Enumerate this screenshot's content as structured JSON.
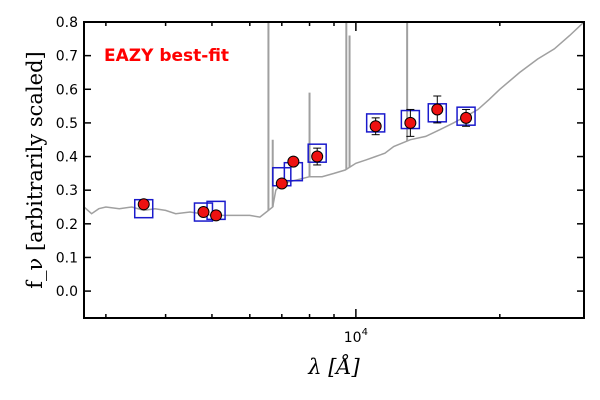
{
  "chart_data": {
    "type": "scatter",
    "title": "",
    "xlabel": "λ [Å]",
    "ylabel": "f_ν [arbitrarily scaled]",
    "xscale": "log",
    "xlim": [
      2700,
      30000
    ],
    "ylim": [
      -0.08,
      0.8
    ],
    "grid": false,
    "yticks": [
      0.0,
      0.1,
      0.2,
      0.3,
      0.4,
      0.5,
      0.6,
      0.7,
      0.8
    ],
    "ytick_labels": [
      "0.0",
      "0.1",
      "0.2",
      "0.3",
      "0.4",
      "0.5",
      "0.6",
      "0.7",
      "0.8"
    ],
    "xtick_label": {
      "base": "10",
      "exp": "4",
      "value": 10000
    },
    "annotation": {
      "text": "EAZY best-fit",
      "color": "#ff0000"
    },
    "colors": {
      "template": "#a0a0a0",
      "model_box": "#1a1acc",
      "point_fill": "#ee1111",
      "point_edge": "#000000"
    },
    "series": [
      {
        "kind": "observed_photometry",
        "x": [
          3600,
          4800,
          5100,
          7000,
          7400,
          8300,
          11000,
          13000,
          14800,
          17000
        ],
        "y": [
          0.258,
          0.235,
          0.225,
          0.32,
          0.385,
          0.4,
          0.49,
          0.5,
          0.54,
          0.515
        ],
        "yerr": [
          0.0,
          0.0,
          0.0,
          0.0,
          0.0,
          0.025,
          0.025,
          0.04,
          0.04,
          0.025
        ]
      },
      {
        "kind": "model_flux",
        "x": [
          3600,
          4800,
          5100,
          7000,
          7400,
          8300,
          11000,
          13000,
          14800,
          17000
        ],
        "y": [
          0.245,
          0.235,
          0.24,
          0.34,
          0.355,
          0.41,
          0.5,
          0.51,
          0.53,
          0.52
        ]
      },
      {
        "kind": "template_spectrum",
        "x": [
          2700,
          2800,
          2900,
          3000,
          3200,
          3400,
          3600,
          3800,
          4000,
          4200,
          4500,
          5000,
          5500,
          6000,
          6300,
          6500,
          6700,
          6800,
          7000,
          7500,
          8000,
          8500,
          9000,
          9500,
          10000,
          10500,
          11000,
          11500,
          12000,
          13000,
          14000,
          15000,
          16000,
          16500,
          17000,
          18000,
          19000,
          20000,
          22000,
          24000,
          26000,
          28000,
          30000
        ],
        "y": [
          0.25,
          0.23,
          0.245,
          0.25,
          0.245,
          0.25,
          0.24,
          0.245,
          0.24,
          0.23,
          0.235,
          0.225,
          0.225,
          0.225,
          0.22,
          0.235,
          0.25,
          0.3,
          0.32,
          0.33,
          0.34,
          0.34,
          0.35,
          0.36,
          0.38,
          0.39,
          0.4,
          0.41,
          0.43,
          0.45,
          0.46,
          0.48,
          0.5,
          0.51,
          0.52,
          0.54,
          0.57,
          0.6,
          0.65,
          0.69,
          0.72,
          0.76,
          0.8
        ]
      }
    ],
    "emission_lines": [
      {
        "x": 6563,
        "peak": 0.82
      },
      {
        "x": 6700,
        "peak": 0.45
      },
      {
        "x": 8000,
        "peak": 0.59
      },
      {
        "x": 9550,
        "peak": 0.82
      },
      {
        "x": 9700,
        "peak": 0.76
      },
      {
        "x": 12800,
        "peak": 0.82
      }
    ]
  }
}
